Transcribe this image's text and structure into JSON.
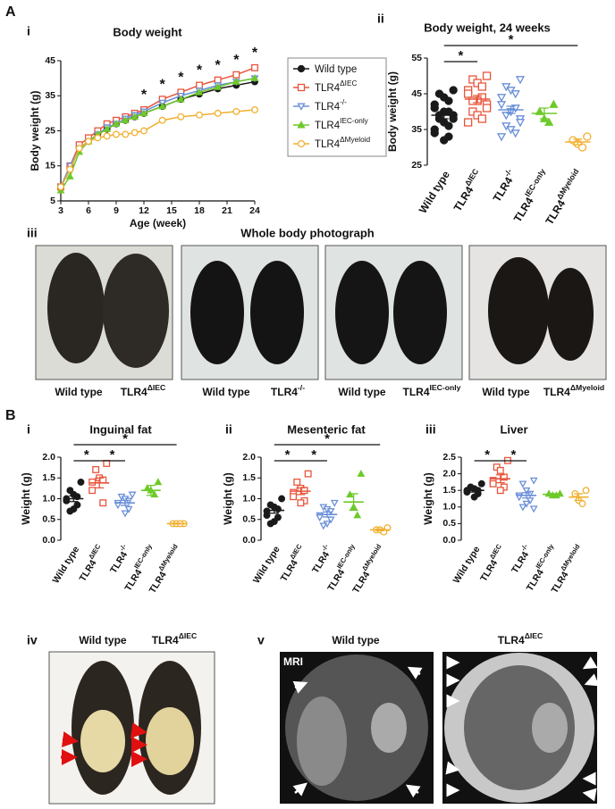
{
  "labels": [
    "A",
    "i",
    "ii",
    "iii",
    "B",
    "i",
    "ii",
    "iii",
    "iv",
    "v"
  ],
  "photographs": {
    "title": "Whole body photograph",
    "captions": [
      "Wild type",
      "TLR4ΔIEC",
      "Wild type",
      "TLR4-/-",
      "Wild type",
      "TLR4IEC-only",
      "Wild type",
      "TLR4ΔMyeloid"
    ],
    "fat_captions": [
      "Wild type",
      "TLR4ΔIEC"
    ],
    "mri_captions": [
      "Wild type",
      "TLR4ΔIEC"
    ],
    "mri_tag": "MRI"
  },
  "chart_data": [
    {
      "type": "line",
      "title": "Body weight",
      "x_label": "Age (week)",
      "y_label": "Body weight (g)",
      "x": [
        3,
        4,
        5,
        6,
        7,
        8,
        9,
        10,
        11,
        12,
        14,
        16,
        18,
        20,
        22,
        24
      ],
      "xlim": [
        3,
        24
      ],
      "xticks": [
        3,
        6,
        9,
        12,
        15,
        18,
        21,
        24
      ],
      "ylim": [
        5,
        45
      ],
      "yticks": [
        5,
        15,
        25,
        35,
        45
      ],
      "series": [
        {
          "name": "Wild type",
          "color": "#1a1a1a",
          "marker": "circle-filled",
          "values": [
            9,
            14,
            20,
            22,
            24,
            25.5,
            27,
            28,
            29,
            30,
            32,
            34,
            35.5,
            37,
            38,
            39
          ]
        },
        {
          "name": "TLR4ΔIEC",
          "color": "#e8553c",
          "marker": "square-open",
          "values": [
            9,
            15,
            21,
            23,
            25,
            27,
            28,
            29,
            30,
            31,
            34,
            36,
            38,
            39.5,
            41,
            43
          ]
        },
        {
          "name": "TLR4-/-",
          "color": "#6a8fd8",
          "marker": "triangle-down-open",
          "values": [
            9,
            15,
            20,
            22,
            24,
            26,
            27,
            28.5,
            29.5,
            30.5,
            33,
            35,
            36.5,
            38,
            39,
            40
          ]
        },
        {
          "name": "TLR4IEC-only",
          "color": "#6ec92a",
          "marker": "triangle-up-filled",
          "values": [
            8,
            12,
            19,
            22,
            24,
            25.5,
            27,
            28,
            29,
            30,
            32,
            34,
            36,
            37.5,
            39,
            40
          ]
        },
        {
          "name": "TLR4ΔMyeloid",
          "color": "#f0b030",
          "marker": "circle-open",
          "values": [
            9,
            14,
            20,
            22,
            23,
            23.5,
            24,
            24,
            24.5,
            25,
            28,
            29,
            29.5,
            30,
            30.5,
            31
          ]
        }
      ],
      "annotations": [
        {
          "x": 12,
          "text": "*"
        },
        {
          "x": 14,
          "text": "*"
        },
        {
          "x": 16,
          "text": "*"
        },
        {
          "x": 18,
          "text": "*"
        },
        {
          "x": 20,
          "text": "*"
        },
        {
          "x": 22,
          "text": "*"
        },
        {
          "x": 24,
          "text": "*"
        }
      ]
    },
    {
      "type": "dot",
      "title": "Body weight, 24 weeks",
      "y_label": "Body weight (g)",
      "categories": [
        "Wild type",
        "TLR4ΔIEC",
        "TLR4-/-",
        "TLR4IEC-only",
        "TLR4ΔMyeloid"
      ],
      "colors": [
        "#1a1a1a",
        "#e8553c",
        "#6a8fd8",
        "#6ec92a",
        "#f0b030"
      ],
      "markers": [
        "circle-filled",
        "square-open",
        "triangle-down-open",
        "triangle-up-filled",
        "circle-open"
      ],
      "ylim": [
        25,
        55
      ],
      "yticks": [
        25,
        35,
        45,
        55
      ],
      "groups": [
        [
          46,
          45,
          44,
          43,
          42,
          41,
          40,
          40,
          39,
          39,
          38,
          38,
          37,
          36,
          35,
          34,
          33,
          32
        ],
        [
          50,
          49,
          48,
          47,
          46,
          45,
          44,
          43,
          43,
          42,
          41,
          40,
          39,
          38,
          37
        ],
        [
          49,
          47,
          46,
          45,
          44,
          42,
          41,
          40,
          39,
          38,
          37,
          36,
          35,
          34,
          33
        ],
        [
          42,
          40,
          38,
          37
        ],
        [
          33,
          32,
          31,
          30
        ]
      ],
      "means": [
        39,
        43.5,
        40.5,
        39.5,
        31.5
      ],
      "errors": [
        1,
        1,
        1,
        1.5,
        0.8
      ],
      "brackets": [
        {
          "pair": [
            0,
            1
          ],
          "text": "*"
        },
        {
          "pair": [
            0,
            4
          ],
          "text": "*"
        }
      ]
    },
    {
      "type": "dot",
      "title": "Inguinal fat",
      "y_label": "Weight (g)",
      "categories": [
        "Wild type",
        "TLR4ΔIEC",
        "TLR4-/-",
        "TLR4IEC-only",
        "TLR4ΔMyeloid"
      ],
      "colors": [
        "#1a1a1a",
        "#e8553c",
        "#6a8fd8",
        "#6ec92a",
        "#f0b030"
      ],
      "markers": [
        "circle-filled",
        "square-open",
        "triangle-down-open",
        "triangle-up-filled",
        "circle-open"
      ],
      "ylim": [
        0,
        2
      ],
      "yticks": [
        {
          "value": 0,
          "label": "0.0"
        },
        0.5,
        {
          "value": 1,
          "label": "1.0"
        },
        1.5,
        {
          "value": 2,
          "label": "2.0"
        }
      ],
      "groups": [
        [
          1.4,
          1.2,
          1.1,
          1.05,
          1.0,
          0.95,
          0.85,
          0.75,
          0.7
        ],
        [
          1.85,
          1.7,
          1.5,
          1.45,
          1.4,
          1.2,
          0.9
        ],
        [
          1.1,
          1.05,
          1.0,
          0.95,
          0.9,
          0.85,
          0.75,
          0.65
        ],
        [
          1.4,
          1.25,
          1.2,
          1.1
        ],
        [
          0.4,
          0.4,
          0.4,
          0.4
        ]
      ],
      "means": [
        1.0,
        1.38,
        0.9,
        1.2,
        0.4
      ],
      "errors": [
        0.07,
        0.12,
        0.06,
        0.12,
        0.01
      ],
      "brackets": [
        {
          "pair": [
            0,
            1
          ],
          "text": "*"
        },
        {
          "pair": [
            1,
            2
          ],
          "text": "*"
        },
        {
          "pair": [
            0,
            4
          ],
          "text": "*"
        }
      ]
    },
    {
      "type": "dot",
      "title": "Mesenteric fat",
      "y_label": "Weight (g)",
      "categories": [
        "Wild type",
        "TLR4ΔIEC",
        "TLR4-/-",
        "TLR4IEC-only",
        "TLR4ΔMyeloid"
      ],
      "colors": [
        "#1a1a1a",
        "#e8553c",
        "#6a8fd8",
        "#6ec92a",
        "#f0b030"
      ],
      "markers": [
        "circle-filled",
        "square-open",
        "triangle-down-open",
        "triangle-up-filled",
        "circle-open"
      ],
      "ylim": [
        0,
        2
      ],
      "yticks": [
        {
          "value": 0,
          "label": "0.0"
        },
        0.5,
        {
          "value": 1,
          "label": "1.0"
        },
        1.5,
        {
          "value": 2,
          "label": "2.0"
        }
      ],
      "groups": [
        [
          1.0,
          0.85,
          0.8,
          0.75,
          0.7,
          0.6,
          0.55,
          0.45,
          0.4
        ],
        [
          1.6,
          1.4,
          1.25,
          1.2,
          1.15,
          1.05,
          0.95,
          0.9
        ],
        [
          0.9,
          0.8,
          0.75,
          0.7,
          0.6,
          0.55,
          0.5,
          0.4,
          0.35
        ],
        [
          1.6,
          1.1,
          0.8,
          0.6
        ],
        [
          0.3,
          0.25,
          0.25,
          0.2
        ]
      ],
      "means": [
        0.72,
        1.18,
        0.62,
        0.92,
        0.25
      ],
      "errors": [
        0.07,
        0.08,
        0.06,
        0.2,
        0.02
      ],
      "brackets": [
        {
          "pair": [
            0,
            1
          ],
          "text": "*"
        },
        {
          "pair": [
            1,
            2
          ],
          "text": "*"
        },
        {
          "pair": [
            0,
            4
          ],
          "text": "*"
        }
      ]
    },
    {
      "type": "dot",
      "title": "Liver",
      "y_label": "Weight (g)",
      "categories": [
        "Wild type",
        "TLR4ΔIEC",
        "TLR4-/-",
        "TLR4IEC-only",
        "TLR4ΔMyeloid"
      ],
      "colors": [
        "#1a1a1a",
        "#e8553c",
        "#6a8fd8",
        "#6ec92a",
        "#f0b030"
      ],
      "markers": [
        "circle-filled",
        "square-open",
        "triangle-down-open",
        "triangle-up-filled",
        "circle-open"
      ],
      "ylim": [
        0,
        2.5
      ],
      "yticks": [
        {
          "value": 0,
          "label": "0.0"
        },
        0.5,
        {
          "value": 1,
          "label": "1.0"
        },
        1.5,
        {
          "value": 2,
          "label": "2.0"
        },
        2.5
      ],
      "groups": [
        [
          1.7,
          1.6,
          1.55,
          1.5,
          1.5,
          1.45,
          1.4,
          1.3
        ],
        [
          2.4,
          2.2,
          2.1,
          1.9,
          1.8,
          1.7,
          1.6,
          1.5
        ],
        [
          1.8,
          1.7,
          1.5,
          1.4,
          1.35,
          1.3,
          1.2,
          1.1,
          1.0,
          0.95
        ],
        [
          1.4,
          1.4,
          1.35,
          1.35
        ],
        [
          1.5,
          1.4,
          1.2,
          1.1
        ]
      ],
      "means": [
        1.5,
        1.85,
        1.35,
        1.38,
        1.3
      ],
      "errors": [
        0.05,
        0.12,
        0.08,
        0.02,
        0.1
      ],
      "brackets": [
        {
          "pair": [
            0,
            1
          ],
          "text": "*"
        },
        {
          "pair": [
            1,
            2
          ],
          "text": "*"
        }
      ]
    }
  ]
}
